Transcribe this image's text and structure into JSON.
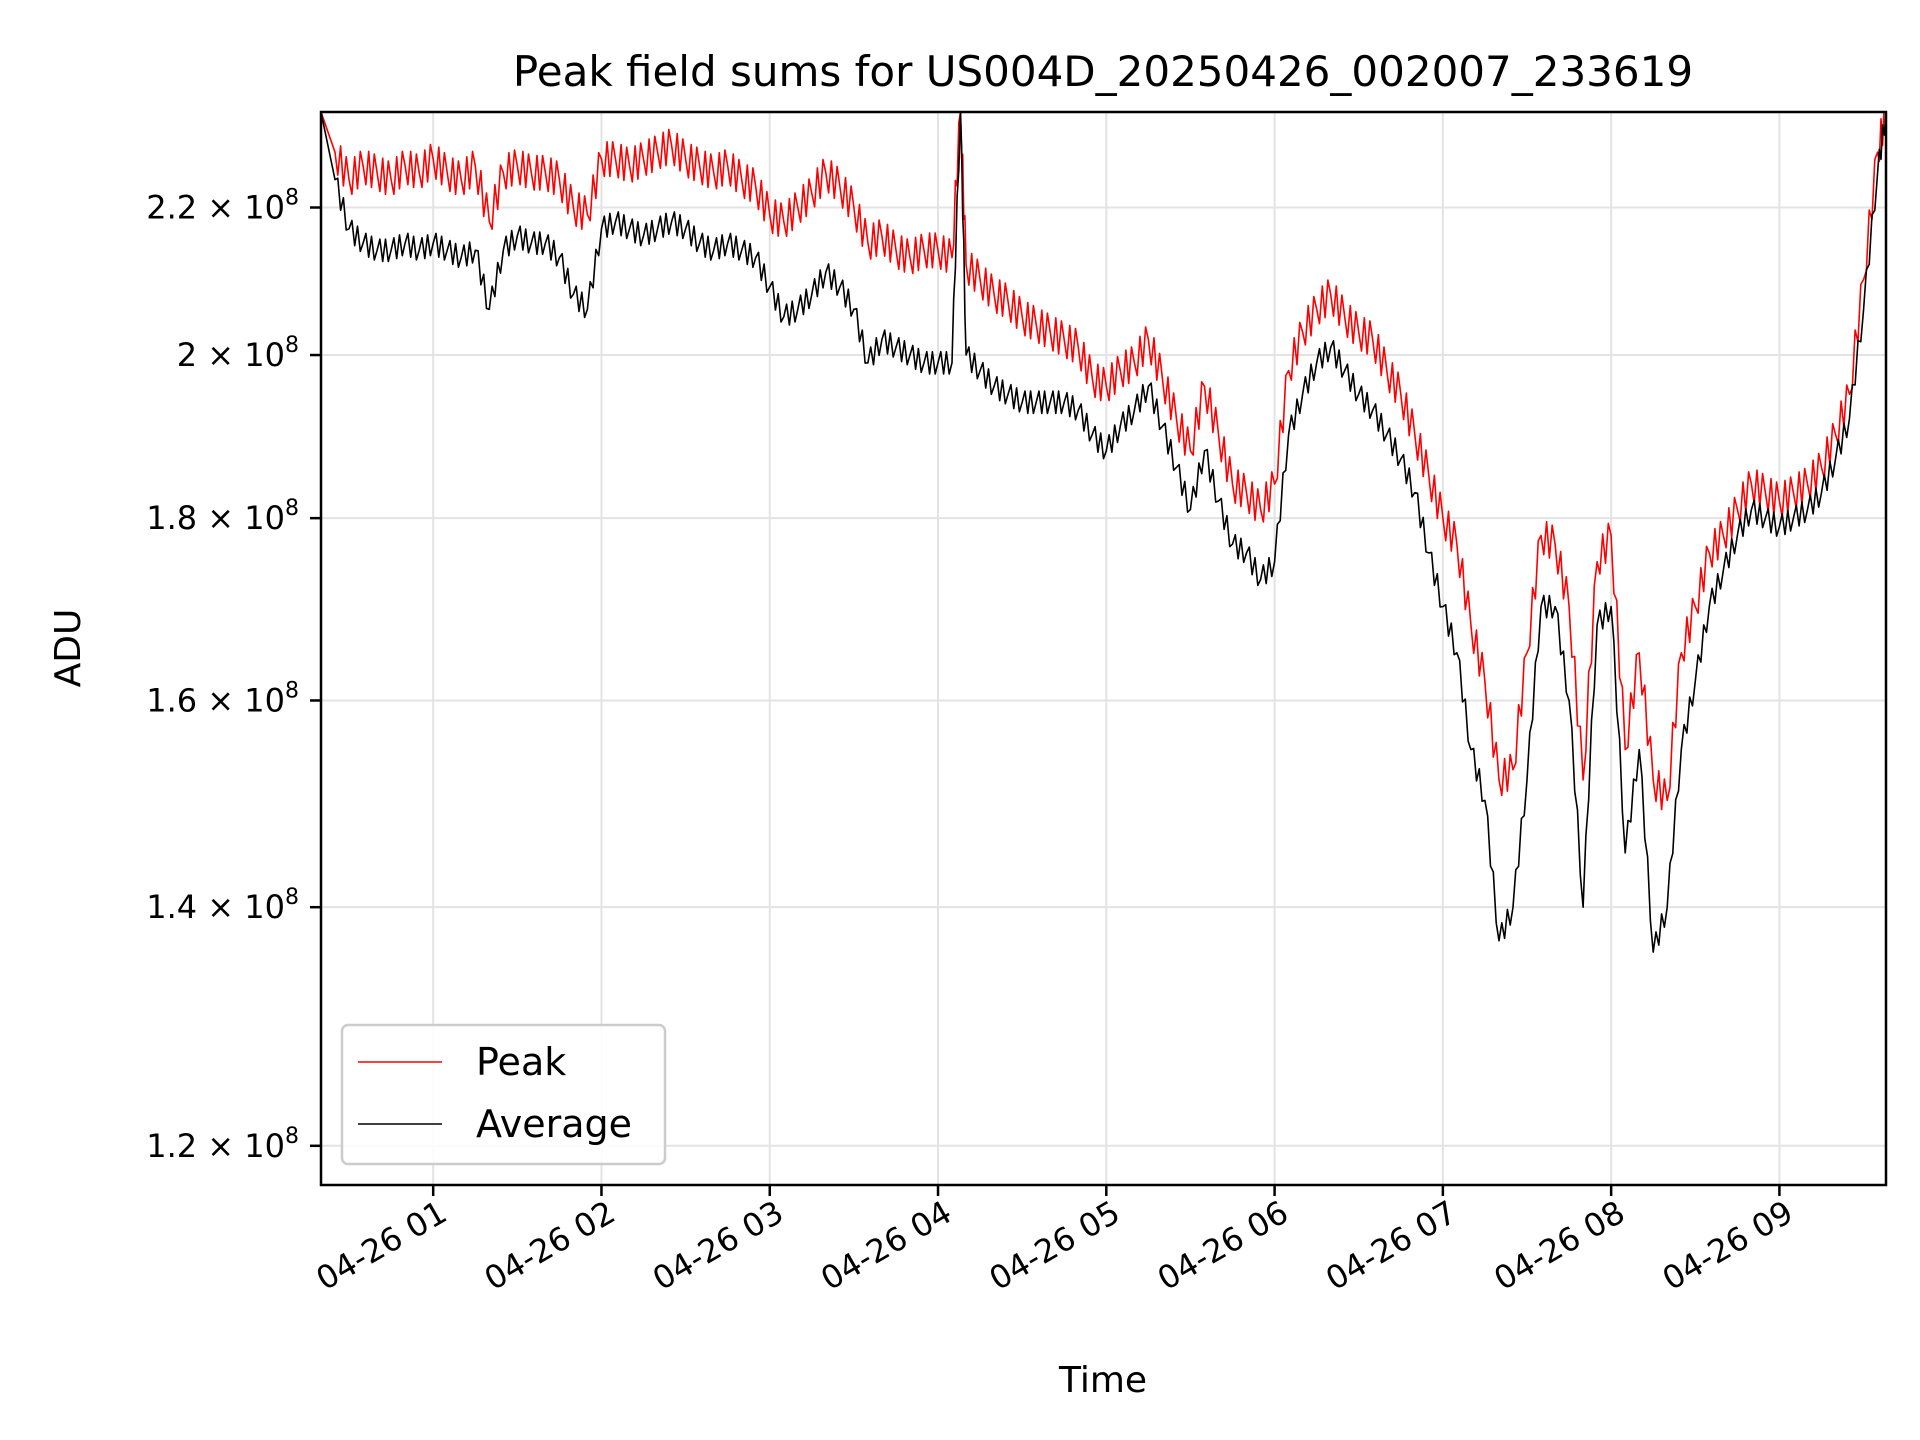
{
  "chart_data": {
    "type": "line",
    "title": "Peak field sums for US004D_20250426_002007_233619",
    "xlabel": "Time",
    "ylabel": "ADU",
    "yscale": "log",
    "xlim": [
      "2025-04-26 00:20",
      "2025-04-26 09:38"
    ],
    "ylim": [
      117000000,
      234000000
    ],
    "grid": true,
    "legend_position": "lower-left",
    "x_ticks": [
      "2025-04-26 01:00",
      "2025-04-26 02:00",
      "2025-04-26 03:00",
      "2025-04-26 04:00",
      "2025-04-26 05:00",
      "2025-04-26 06:00",
      "2025-04-26 07:00",
      "2025-04-26 08:00",
      "2025-04-26 09:00"
    ],
    "x_tick_labels": [
      "04-26 01",
      "04-26 02",
      "04-26 03",
      "04-26 04",
      "04-26 05",
      "04-26 06",
      "04-26 07",
      "04-26 08",
      "04-26 09"
    ],
    "y_ticks": [
      120000000,
      140000000,
      160000000,
      180000000,
      200000000,
      220000000
    ],
    "y_tick_mantissas": [
      "1.2",
      "1.4",
      "1.6",
      "1.8",
      "2",
      "2.2"
    ],
    "y_tick_base": "× 10",
    "y_tick_exponent": "8",
    "x": [
      "00:20",
      "00:25",
      "00:30",
      "00:35",
      "00:40",
      "00:45",
      "00:50",
      "00:55",
      "01:00",
      "01:05",
      "01:10",
      "01:15",
      "01:20",
      "01:25",
      "01:30",
      "01:35",
      "01:40",
      "01:45",
      "01:50",
      "01:55",
      "02:00",
      "02:05",
      "02:10",
      "02:15",
      "02:20",
      "02:25",
      "02:30",
      "02:35",
      "02:40",
      "02:45",
      "02:50",
      "02:55",
      "03:00",
      "03:05",
      "03:10",
      "03:15",
      "03:20",
      "03:25",
      "03:30",
      "03:35",
      "03:40",
      "03:45",
      "03:50",
      "03:55",
      "04:00",
      "04:05",
      "04:08",
      "04:10",
      "04:15",
      "04:20",
      "04:25",
      "04:30",
      "04:35",
      "04:40",
      "04:45",
      "04:50",
      "04:55",
      "05:00",
      "05:05",
      "05:10",
      "05:15",
      "05:20",
      "05:25",
      "05:30",
      "05:35",
      "05:40",
      "05:45",
      "05:50",
      "05:55",
      "06:00",
      "06:05",
      "06:10",
      "06:15",
      "06:20",
      "06:25",
      "06:30",
      "06:35",
      "06:40",
      "06:45",
      "06:50",
      "06:55",
      "07:00",
      "07:05",
      "07:10",
      "07:15",
      "07:20",
      "07:25",
      "07:30",
      "07:35",
      "07:40",
      "07:45",
      "07:50",
      "07:55",
      "08:00",
      "08:05",
      "08:10",
      "08:15",
      "08:20",
      "08:25",
      "08:30",
      "08:35",
      "08:40",
      "08:45",
      "08:50",
      "08:55",
      "09:00",
      "09:05",
      "09:10",
      "09:15",
      "09:20",
      "09:25",
      "09:30",
      "09:35",
      "09:38"
    ],
    "series": [
      {
        "name": "Peak",
        "color": "#ff0000",
        "values": [
          234,
          228,
          224,
          226,
          225,
          224,
          226,
          225,
          227,
          225,
          224,
          226,
          218,
          225,
          226,
          225,
          225,
          224,
          220,
          219,
          227,
          227,
          226,
          227,
          228,
          229,
          227,
          226,
          225,
          226,
          224,
          223,
          219,
          218,
          220,
          222,
          225,
          223,
          220,
          215,
          216,
          214,
          213,
          214,
          214,
          213,
          234,
          212,
          210,
          208,
          207,
          205,
          204,
          203,
          202,
          201,
          197,
          196,
          198,
          199,
          202,
          197,
          192,
          188,
          196,
          190,
          184,
          183,
          181,
          184,
          198,
          203,
          206,
          208,
          205,
          203,
          202,
          198,
          195,
          190,
          185,
          180,
          177,
          168,
          162,
          152,
          153,
          165,
          178,
          177,
          170,
          152,
          175,
          178,
          155,
          165,
          152,
          150,
          165,
          170,
          176,
          178,
          181,
          184,
          183,
          182,
          183,
          184,
          186,
          190,
          195,
          210,
          228,
          234
        ]
      },
      {
        "name": "Average",
        "color": "#000000",
        "values": [
          234,
          224,
          217,
          215,
          214,
          214,
          215,
          214,
          215,
          214,
          213,
          214,
          206,
          214,
          216,
          215,
          215,
          213,
          208,
          206,
          217,
          218,
          217,
          216,
          217,
          218,
          217,
          215,
          214,
          215,
          214,
          213,
          209,
          205,
          206,
          208,
          211,
          209,
          206,
          199,
          202,
          201,
          200,
          199,
          199,
          199,
          234,
          200,
          198,
          196,
          195,
          194,
          194,
          194,
          194,
          193,
          190,
          188,
          191,
          193,
          196,
          191,
          186,
          181,
          188,
          182,
          177,
          176,
          173,
          175,
          190,
          195,
          199,
          201,
          198,
          195,
          193,
          190,
          187,
          183,
          176,
          170,
          165,
          155,
          150,
          137,
          140,
          152,
          170,
          170,
          160,
          140,
          168,
          170,
          145,
          155,
          136,
          140,
          155,
          162,
          170,
          174,
          178,
          181,
          180,
          179,
          180,
          181,
          183,
          187,
          192,
          206,
          225,
          234
        ]
      }
    ],
    "values_unit": "1e6 ADU"
  }
}
